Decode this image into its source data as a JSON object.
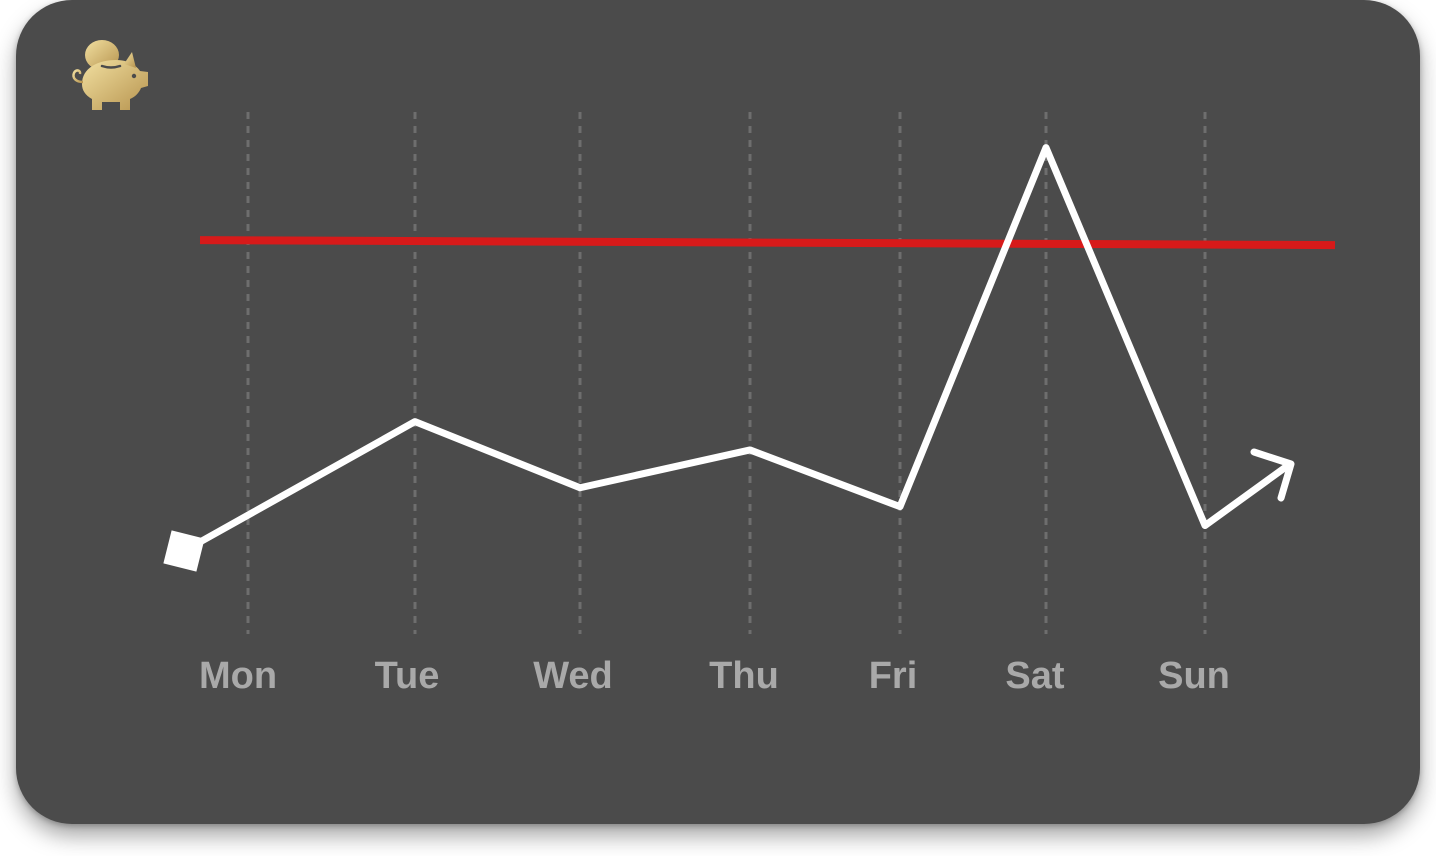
{
  "app": {
    "logo_icon": "piggy-bank-icon"
  },
  "colors": {
    "background": "#4b4b4b",
    "series_line": "#ffffff",
    "threshold_line": "#d71a1a",
    "gridline": "#6e6e6e",
    "label": "#a9a9a9",
    "logo_gold_light": "#f1dfa0",
    "logo_gold_dark": "#b7944f"
  },
  "chart_data": {
    "type": "line",
    "title": "",
    "xlabel": "",
    "ylabel": "",
    "categories": [
      "Mon",
      "Tue",
      "Wed",
      "Thu",
      "Fri",
      "Sat",
      "Sun"
    ],
    "series": [
      {
        "values": [
          16,
          42,
          28,
          36,
          24,
          100,
          20
        ]
      }
    ],
    "threshold": 80,
    "ylim": [
      0,
      105
    ],
    "grid": {
      "vertical": true,
      "style": "dashed",
      "horizontal": false
    },
    "start_marker": "square",
    "end_marker": "arrow",
    "legend": "none"
  }
}
